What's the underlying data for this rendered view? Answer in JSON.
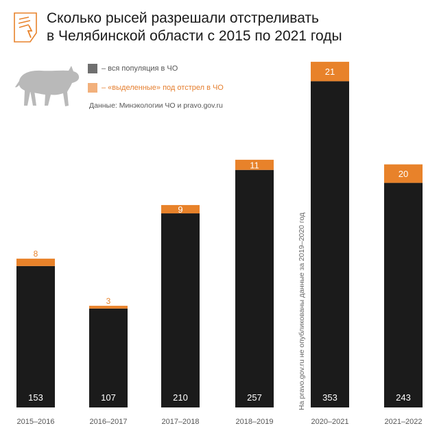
{
  "title": {
    "line1": "Сколько рысей разрешали отстреливать",
    "line2": "в Челябинской области с 2015 по 2021 годы"
  },
  "legend": {
    "population_label": "– вся популяция в ЧО",
    "allowed_label": "– «выделенные» под отстрел в ЧО"
  },
  "source": "Данные: Минэкологии ЧО и pravo.gov.ru",
  "note": "На pravo.gov.ru не опубликованы данные за 2019–2020 год",
  "colors": {
    "population": "#1b1b1b",
    "allowed": "#e8822a",
    "population_legend": "#6f6f6f",
    "allowed_legend": "#f2b07c"
  },
  "chart_data": {
    "type": "bar",
    "stacked": true,
    "title": "Сколько рысей разрешали отстреливать в Челябинской области с 2015 по 2021 годы",
    "categories": [
      "2015–2016",
      "2016–2017",
      "2017–2018",
      "2018–2019",
      "2020–2021",
      "2021–2022"
    ],
    "series": [
      {
        "name": "вся популяция в ЧО",
        "values": [
          153,
          107,
          210,
          257,
          353,
          243
        ]
      },
      {
        "name": "«выделенные» под отстрел в ЧО",
        "values": [
          8,
          3,
          9,
          11,
          21,
          20
        ]
      }
    ],
    "xlabel": "",
    "ylabel": "",
    "ylim": [
      0,
      380
    ],
    "grid": false,
    "legend": "top-left"
  }
}
